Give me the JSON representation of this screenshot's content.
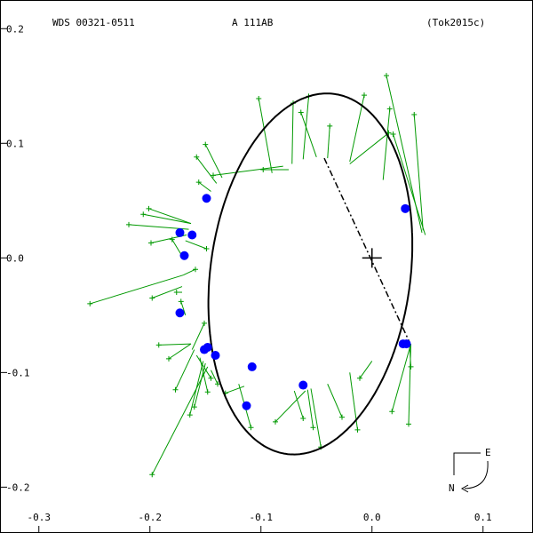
{
  "header": {
    "wds": "WDS 00321-0511",
    "component": "A   111AB",
    "reference": "(Tok2015c)"
  },
  "compass": {
    "east": "E",
    "north": "N"
  },
  "chart_data": {
    "type": "scatter",
    "xlim": [
      -0.335,
      0.145
    ],
    "ylim": [
      -0.24,
      0.225
    ],
    "x_ticks": [
      {
        "value": -0.3,
        "label": "-0.3"
      },
      {
        "value": -0.2,
        "label": "-0.2"
      },
      {
        "value": -0.1,
        "label": "-0.1"
      },
      {
        "value": 0.0,
        "label": "0.0"
      },
      {
        "value": 0.1,
        "label": "0.1"
      }
    ],
    "y_ticks": [
      {
        "value": 0.2,
        "label": "0.2"
      },
      {
        "value": 0.1,
        "label": "0.1"
      },
      {
        "value": 0.0,
        "label": "0.0"
      },
      {
        "value": -0.1,
        "label": "-0.1"
      },
      {
        "value": -0.2,
        "label": "-0.2"
      }
    ],
    "primary": {
      "x": 0.0,
      "y": 0.0
    },
    "orbit": {
      "cx": -0.0555,
      "cy": -0.014,
      "a": 0.1585,
      "b": 0.09,
      "angle_deg": 82
    },
    "line_of_nodes": [
      {
        "x": -0.043,
        "y": 0.087
      },
      {
        "x": 0.034,
        "y": -0.074
      }
    ],
    "residuals": [
      {
        "from": [
          -0.075,
          0.077
        ],
        "to": [
          -0.098,
          0.077
        ]
      },
      {
        "from": [
          -0.09,
          0.074
        ],
        "to": [
          -0.102,
          0.139
        ]
      },
      {
        "from": [
          -0.08,
          0.08
        ],
        "to": [
          -0.143,
          0.072
        ]
      },
      {
        "from": [
          -0.072,
          0.082
        ],
        "to": [
          -0.071,
          0.135
        ]
      },
      {
        "from": [
          -0.062,
          0.086
        ],
        "to": [
          -0.057,
          0.141
        ]
      },
      {
        "from": [
          -0.05,
          0.088
        ],
        "to": [
          -0.064,
          0.127
        ]
      },
      {
        "from": [
          -0.04,
          0.087
        ],
        "to": [
          -0.038,
          0.115
        ]
      },
      {
        "from": [
          -0.02,
          0.084
        ],
        "to": [
          -0.007,
          0.142
        ]
      },
      {
        "from": [
          -0.02,
          0.082
        ],
        "to": [
          0.015,
          0.109
        ]
      },
      {
        "from": [
          0.01,
          0.068
        ],
        "to": [
          0.016,
          0.13
        ]
      },
      {
        "from": [
          0.045,
          0.022
        ],
        "to": [
          0.013,
          0.159
        ]
      },
      {
        "from": [
          0.048,
          0.02
        ],
        "to": [
          0.019,
          0.108
        ]
      },
      {
        "from": [
          0.046,
          0.024
        ],
        "to": [
          0.038,
          0.125
        ]
      },
      {
        "from": [
          -0.135,
          0.07
        ],
        "to": [
          -0.15,
          0.099
        ]
      },
      {
        "from": [
          -0.14,
          0.065
        ],
        "to": [
          -0.158,
          0.088
        ]
      },
      {
        "from": [
          -0.145,
          0.058
        ],
        "to": [
          -0.156,
          0.066
        ]
      },
      {
        "from": [
          -0.163,
          0.03
        ],
        "to": [
          -0.201,
          0.043
        ]
      },
      {
        "from": [
          -0.163,
          0.03
        ],
        "to": [
          -0.206,
          0.038
        ]
      },
      {
        "from": [
          -0.165,
          0.025
        ],
        "to": [
          -0.219,
          0.029
        ]
      },
      {
        "from": [
          -0.167,
          0.02
        ],
        "to": [
          -0.199,
          0.013
        ]
      },
      {
        "from": [
          -0.168,
          0.015
        ],
        "to": [
          -0.149,
          0.008
        ]
      },
      {
        "from": [
          -0.17,
          0.0
        ],
        "to": [
          -0.18,
          0.016
        ]
      },
      {
        "from": [
          -0.17,
          -0.015
        ],
        "to": [
          -0.254,
          -0.04
        ]
      },
      {
        "from": [
          -0.17,
          -0.015
        ],
        "to": [
          -0.159,
          -0.01
        ]
      },
      {
        "from": [
          -0.171,
          -0.025
        ],
        "to": [
          -0.198,
          -0.035
        ]
      },
      {
        "from": [
          -0.171,
          -0.03
        ],
        "to": [
          -0.176,
          -0.03
        ]
      },
      {
        "from": [
          -0.168,
          -0.05
        ],
        "to": [
          -0.172,
          -0.038
        ]
      },
      {
        "from": [
          -0.163,
          -0.075
        ],
        "to": [
          -0.183,
          -0.088
        ]
      },
      {
        "from": [
          -0.163,
          -0.075
        ],
        "to": [
          -0.192,
          -0.076
        ]
      },
      {
        "from": [
          -0.162,
          -0.08
        ],
        "to": [
          -0.151,
          -0.057
        ]
      },
      {
        "from": [
          -0.16,
          -0.08
        ],
        "to": [
          -0.177,
          -0.115
        ]
      },
      {
        "from": [
          -0.158,
          -0.085
        ],
        "to": [
          -0.145,
          -0.105
        ]
      },
      {
        "from": [
          -0.155,
          -0.087
        ],
        "to": [
          -0.148,
          -0.117
        ]
      },
      {
        "from": [
          -0.152,
          -0.09
        ],
        "to": [
          -0.164,
          -0.137
        ]
      },
      {
        "from": [
          -0.15,
          -0.092
        ],
        "to": [
          -0.16,
          -0.13
        ]
      },
      {
        "from": [
          -0.148,
          -0.095
        ],
        "to": [
          -0.198,
          -0.189
        ]
      },
      {
        "from": [
          -0.145,
          -0.098
        ],
        "to": [
          -0.139,
          -0.11
        ]
      },
      {
        "from": [
          -0.12,
          -0.11
        ],
        "to": [
          -0.109,
          -0.148
        ]
      },
      {
        "from": [
          -0.115,
          -0.112
        ],
        "to": [
          -0.132,
          -0.118
        ]
      },
      {
        "from": [
          -0.07,
          -0.116
        ],
        "to": [
          -0.062,
          -0.14
        ]
      },
      {
        "from": [
          -0.06,
          -0.116
        ],
        "to": [
          -0.087,
          -0.143
        ]
      },
      {
        "from": [
          -0.058,
          -0.115
        ],
        "to": [
          -0.053,
          -0.148
        ]
      },
      {
        "from": [
          -0.055,
          -0.114
        ],
        "to": [
          -0.046,
          -0.165
        ]
      },
      {
        "from": [
          -0.04,
          -0.11
        ],
        "to": [
          -0.027,
          -0.139
        ]
      },
      {
        "from": [
          -0.02,
          -0.1
        ],
        "to": [
          -0.013,
          -0.15
        ]
      },
      {
        "from": [
          0.0,
          -0.09
        ],
        "to": [
          -0.011,
          -0.105
        ]
      },
      {
        "from": [
          0.035,
          -0.075
        ],
        "to": [
          0.018,
          -0.134
        ]
      },
      {
        "from": [
          0.035,
          -0.075
        ],
        "to": [
          0.033,
          -0.145
        ]
      },
      {
        "from": [
          0.034,
          -0.078
        ],
        "to": [
          0.035,
          -0.095
        ]
      }
    ],
    "observations": [
      {
        "x": -0.149,
        "y": 0.052
      },
      {
        "x": -0.173,
        "y": 0.022
      },
      {
        "x": -0.162,
        "y": 0.02
      },
      {
        "x": -0.169,
        "y": 0.002
      },
      {
        "x": -0.173,
        "y": -0.048
      },
      {
        "x": -0.148,
        "y": -0.078
      },
      {
        "x": -0.151,
        "y": -0.08
      },
      {
        "x": -0.141,
        "y": -0.085
      },
      {
        "x": -0.108,
        "y": -0.095
      },
      {
        "x": -0.113,
        "y": -0.129
      },
      {
        "x": -0.062,
        "y": -0.111
      },
      {
        "x": 0.028,
        "y": -0.075
      },
      {
        "x": 0.031,
        "y": -0.075
      },
      {
        "x": 0.03,
        "y": 0.043
      }
    ],
    "colors": {
      "orbit": "#000000",
      "residual": "#009900",
      "observation": "#0000ff",
      "axis": "#000000"
    }
  }
}
